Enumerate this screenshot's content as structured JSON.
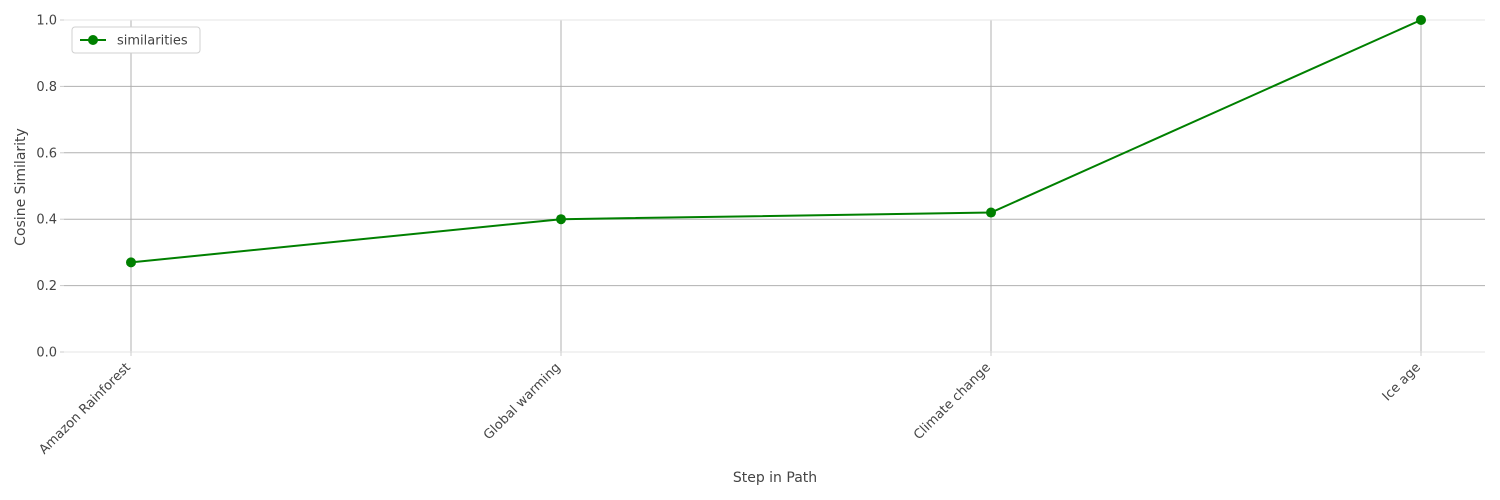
{
  "chart_data": {
    "type": "line",
    "title": "",
    "xlabel": "Step in Path",
    "ylabel": "Cosine Similarity",
    "categories": [
      "Amazon Rainforest",
      "Global warming",
      "Climate change",
      "Ice age"
    ],
    "series": [
      {
        "name": "similarities",
        "values": [
          0.27,
          0.4,
          0.42,
          1.0
        ],
        "color": "#008000",
        "marker": "circle"
      }
    ],
    "ylim": [
      0.0,
      1.0
    ],
    "yticks": [
      "0.0",
      "0.2",
      "0.4",
      "0.6",
      "0.8",
      "1.0"
    ],
    "grid": true,
    "legend_position": "top-left"
  }
}
